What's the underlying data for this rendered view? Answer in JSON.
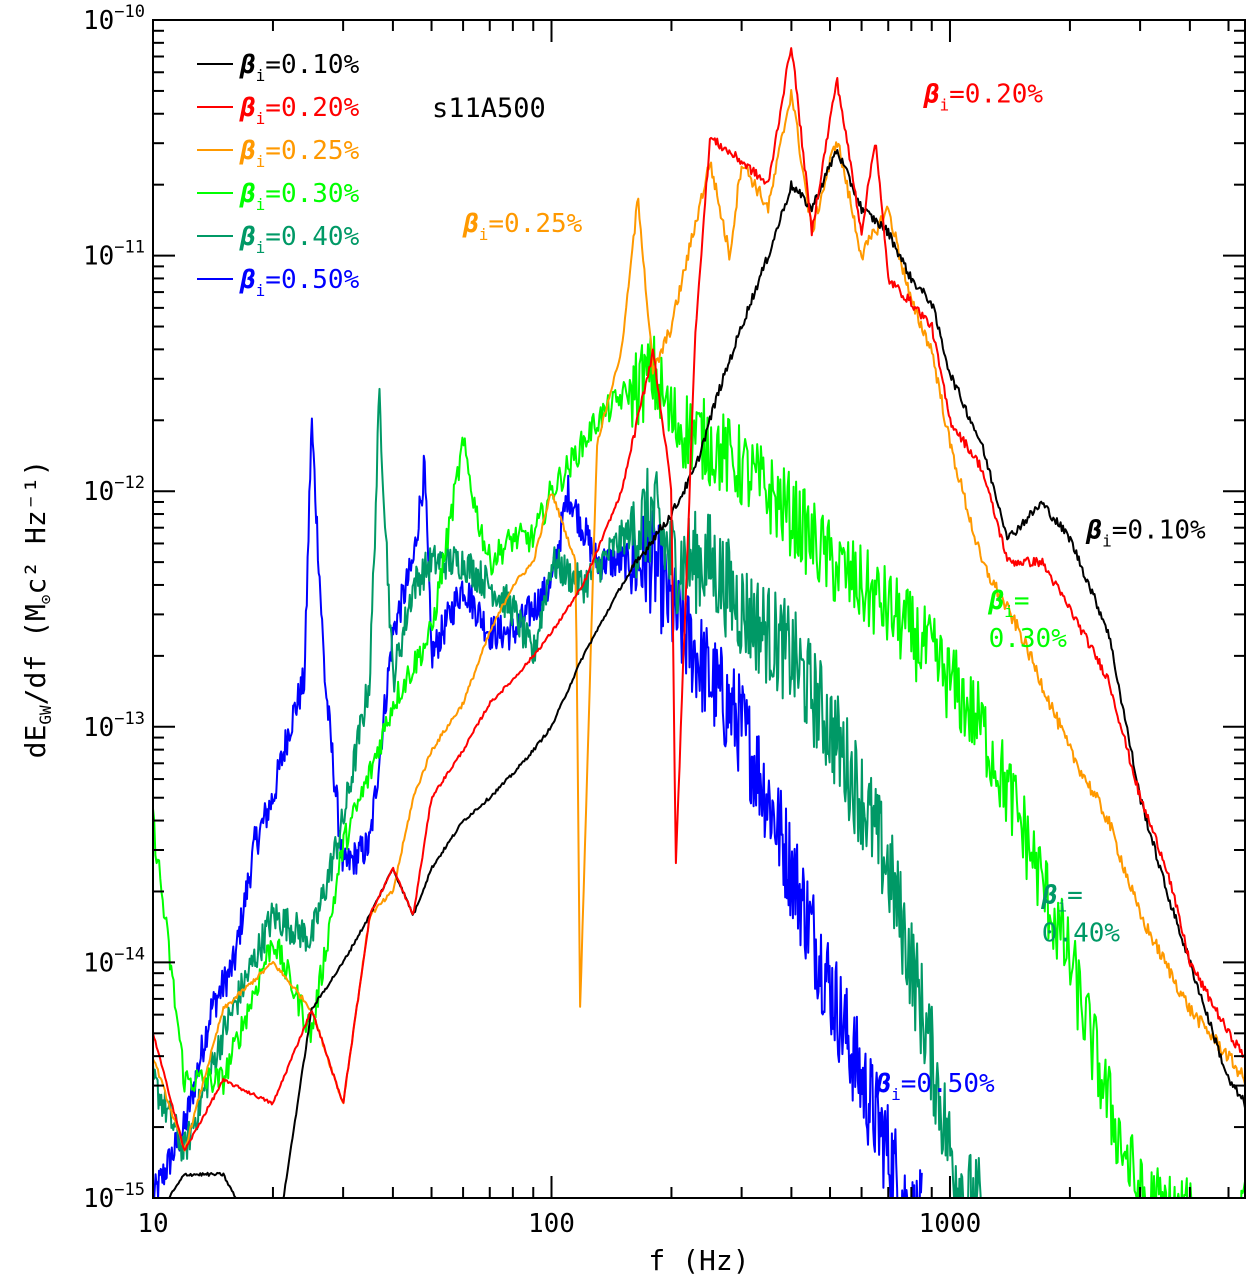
{
  "chart_data": {
    "type": "line",
    "title": "",
    "model_label": "s11A500",
    "xlabel": "f (Hz)",
    "ylabel_main": "dE",
    "ylabel_sub": "GW",
    "ylabel_rest": "/df (M",
    "ylabel_sun": "⊙",
    "ylabel_units": "c² Hz⁻¹)",
    "x_scale": "log",
    "y_scale": "log",
    "xlim": [
      10,
      5500
    ],
    "ylim_exp": [
      -15,
      -10
    ],
    "x_ticks": [
      {
        "value": 10,
        "label": "10"
      },
      {
        "value": 100,
        "label": "100"
      },
      {
        "value": 1000,
        "label": "1000"
      }
    ],
    "y_ticks": [
      {
        "exp": -10,
        "base": "10",
        "sup": "−10"
      },
      {
        "exp": -11,
        "base": "10",
        "sup": "−11"
      },
      {
        "exp": -12,
        "base": "10",
        "sup": "−12"
      },
      {
        "exp": -13,
        "base": "10",
        "sup": "−13"
      },
      {
        "exp": -14,
        "base": "10",
        "sup": "−14"
      },
      {
        "exp": -15,
        "base": "10",
        "sup": "−15"
      }
    ],
    "legend_position": "top-left",
    "series": [
      {
        "name": "0.10%",
        "color": "#000000",
        "noise": 0.02,
        "points": [
          [
            10,
            -15.1
          ],
          [
            12,
            -14.9
          ],
          [
            15,
            -14.9
          ],
          [
            20,
            -15.3
          ],
          [
            25,
            -14.2
          ],
          [
            30,
            -14.0
          ],
          [
            35,
            -13.8
          ],
          [
            40,
            -13.6
          ],
          [
            45,
            -13.8
          ],
          [
            50,
            -13.6
          ],
          [
            60,
            -13.4
          ],
          [
            70,
            -13.3
          ],
          [
            80,
            -13.2
          ],
          [
            90,
            -13.1
          ],
          [
            100,
            -13.0
          ],
          [
            120,
            -12.7
          ],
          [
            150,
            -12.4
          ],
          [
            180,
            -12.2
          ],
          [
            200,
            -12.1
          ],
          [
            230,
            -11.9
          ],
          [
            260,
            -11.6
          ],
          [
            300,
            -11.3
          ],
          [
            350,
            -11.0
          ],
          [
            400,
            -10.7
          ],
          [
            450,
            -10.8
          ],
          [
            520,
            -10.55
          ],
          [
            600,
            -10.8
          ],
          [
            700,
            -10.9
          ],
          [
            800,
            -11.1
          ],
          [
            900,
            -11.2
          ],
          [
            1000,
            -11.5
          ],
          [
            1200,
            -11.8
          ],
          [
            1400,
            -12.2
          ],
          [
            1700,
            -12.05
          ],
          [
            2000,
            -12.2
          ],
          [
            2500,
            -12.6
          ],
          [
            3000,
            -13.3
          ],
          [
            3500,
            -13.7
          ],
          [
            4000,
            -14.0
          ],
          [
            5000,
            -14.5
          ],
          [
            5500,
            -14.6
          ]
        ]
      },
      {
        "name": "0.20%",
        "color": "#ff0000",
        "noise": 0.02,
        "points": [
          [
            10,
            -14.3
          ],
          [
            12,
            -14.8
          ],
          [
            15,
            -14.5
          ],
          [
            20,
            -14.6
          ],
          [
            25,
            -14.2
          ],
          [
            30,
            -14.6
          ],
          [
            35,
            -13.8
          ],
          [
            40,
            -13.6
          ],
          [
            45,
            -13.8
          ],
          [
            50,
            -13.3
          ],
          [
            60,
            -13.1
          ],
          [
            70,
            -12.9
          ],
          [
            80,
            -12.8
          ],
          [
            90,
            -12.7
          ],
          [
            100,
            -12.6
          ],
          [
            120,
            -12.4
          ],
          [
            150,
            -12.0
          ],
          [
            180,
            -11.4
          ],
          [
            200,
            -12.0
          ],
          [
            205,
            -13.6
          ],
          [
            230,
            -11.3
          ],
          [
            250,
            -10.5
          ],
          [
            300,
            -10.6
          ],
          [
            350,
            -10.7
          ],
          [
            400,
            -10.1
          ],
          [
            450,
            -10.9
          ],
          [
            520,
            -10.25
          ],
          [
            600,
            -10.9
          ],
          [
            650,
            -10.5
          ],
          [
            700,
            -11.1
          ],
          [
            800,
            -11.2
          ],
          [
            900,
            -11.3
          ],
          [
            1000,
            -11.7
          ],
          [
            1200,
            -11.9
          ],
          [
            1400,
            -12.3
          ],
          [
            1700,
            -12.3
          ],
          [
            2000,
            -12.5
          ],
          [
            2500,
            -12.8
          ],
          [
            3000,
            -13.3
          ],
          [
            3500,
            -13.6
          ],
          [
            4000,
            -14.0
          ],
          [
            5000,
            -14.3
          ],
          [
            5500,
            -14.4
          ]
        ]
      },
      {
        "name": "0.25%",
        "color": "#ff9900",
        "noise": 0.03,
        "points": [
          [
            10,
            -14.4
          ],
          [
            12,
            -14.8
          ],
          [
            15,
            -14.2
          ],
          [
            20,
            -14.0
          ],
          [
            25,
            -14.2
          ],
          [
            30,
            -14.6
          ],
          [
            35,
            -13.8
          ],
          [
            40,
            -13.7
          ],
          [
            45,
            -13.3
          ],
          [
            50,
            -13.1
          ],
          [
            60,
            -12.9
          ],
          [
            70,
            -12.6
          ],
          [
            80,
            -12.4
          ],
          [
            90,
            -12.3
          ],
          [
            100,
            -12.0
          ],
          [
            115,
            -12.3
          ],
          [
            118,
            -14.2
          ],
          [
            130,
            -11.8
          ],
          [
            150,
            -11.4
          ],
          [
            165,
            -10.75
          ],
          [
            180,
            -11.5
          ],
          [
            200,
            -11.3
          ],
          [
            220,
            -11.0
          ],
          [
            250,
            -10.6
          ],
          [
            280,
            -11.0
          ],
          [
            300,
            -10.6
          ],
          [
            350,
            -10.8
          ],
          [
            400,
            -10.3
          ],
          [
            450,
            -10.9
          ],
          [
            520,
            -10.5
          ],
          [
            600,
            -11.0
          ],
          [
            700,
            -10.8
          ],
          [
            800,
            -11.2
          ],
          [
            900,
            -11.4
          ],
          [
            1000,
            -11.8
          ],
          [
            1200,
            -12.3
          ],
          [
            1500,
            -12.6
          ],
          [
            2000,
            -13.1
          ],
          [
            2500,
            -13.4
          ],
          [
            3000,
            -13.8
          ],
          [
            4000,
            -14.2
          ],
          [
            5000,
            -14.4
          ],
          [
            5500,
            -14.5
          ]
        ]
      },
      {
        "name": "0.30%",
        "color": "#00ff00",
        "noise": 0.18,
        "points": [
          [
            10,
            -13.4
          ],
          [
            12,
            -14.5
          ],
          [
            15,
            -14.5
          ],
          [
            20,
            -13.9
          ],
          [
            25,
            -14.3
          ],
          [
            30,
            -13.5
          ],
          [
            35,
            -13.2
          ],
          [
            40,
            -12.9
          ],
          [
            50,
            -12.6
          ],
          [
            60,
            -11.8
          ],
          [
            65,
            -12.1
          ],
          [
            70,
            -12.3
          ],
          [
            80,
            -12.2
          ],
          [
            90,
            -12.2
          ],
          [
            100,
            -12.0
          ],
          [
            110,
            -11.9
          ],
          [
            130,
            -11.7
          ],
          [
            150,
            -11.6
          ],
          [
            180,
            -11.5
          ],
          [
            200,
            -11.7
          ],
          [
            250,
            -11.8
          ],
          [
            300,
            -11.9
          ],
          [
            400,
            -12.1
          ],
          [
            500,
            -12.3
          ],
          [
            700,
            -12.5
          ],
          [
            900,
            -12.7
          ],
          [
            1200,
            -13.0
          ],
          [
            1500,
            -13.4
          ],
          [
            2000,
            -14.0
          ],
          [
            2500,
            -14.6
          ],
          [
            3000,
            -15.0
          ],
          [
            4000,
            -15.1
          ],
          [
            5000,
            -15.2
          ],
          [
            5500,
            -15.1
          ]
        ]
      },
      {
        "name": "0.40%",
        "color": "#009966",
        "noise": 0.22,
        "points": [
          [
            10,
            -14.5
          ],
          [
            12,
            -14.8
          ],
          [
            15,
            -14.3
          ],
          [
            20,
            -13.8
          ],
          [
            25,
            -13.9
          ],
          [
            30,
            -13.4
          ],
          [
            35,
            -12.8
          ],
          [
            37,
            -11.6
          ],
          [
            40,
            -12.8
          ],
          [
            45,
            -12.4
          ],
          [
            50,
            -12.3
          ],
          [
            60,
            -12.3
          ],
          [
            70,
            -12.4
          ],
          [
            80,
            -12.5
          ],
          [
            90,
            -12.7
          ],
          [
            100,
            -12.3
          ],
          [
            120,
            -12.4
          ],
          [
            150,
            -12.2
          ],
          [
            180,
            -12.1
          ],
          [
            200,
            -12.3
          ],
          [
            250,
            -12.3
          ],
          [
            300,
            -12.5
          ],
          [
            400,
            -12.7
          ],
          [
            500,
            -13.0
          ],
          [
            600,
            -13.3
          ],
          [
            700,
            -13.6
          ],
          [
            800,
            -14.0
          ],
          [
            900,
            -14.4
          ],
          [
            1000,
            -14.8
          ],
          [
            1100,
            -15.0
          ],
          [
            1200,
            -15.05
          ]
        ]
      },
      {
        "name": "0.50%",
        "color": "#0000ff",
        "noise": 0.22,
        "points": [
          [
            10,
            -15.0
          ],
          [
            12,
            -14.7
          ],
          [
            14,
            -14.2
          ],
          [
            16,
            -14.0
          ],
          [
            18,
            -13.5
          ],
          [
            20,
            -13.3
          ],
          [
            22,
            -13.0
          ],
          [
            24,
            -12.8
          ],
          [
            25,
            -11.7
          ],
          [
            27,
            -12.8
          ],
          [
            30,
            -13.6
          ],
          [
            35,
            -13.5
          ],
          [
            40,
            -12.6
          ],
          [
            45,
            -12.3
          ],
          [
            48,
            -11.9
          ],
          [
            50,
            -12.7
          ],
          [
            60,
            -12.4
          ],
          [
            70,
            -12.6
          ],
          [
            80,
            -12.6
          ],
          [
            100,
            -12.4
          ],
          [
            110,
            -12.0
          ],
          [
            130,
            -12.3
          ],
          [
            150,
            -12.3
          ],
          [
            180,
            -12.3
          ],
          [
            200,
            -12.5
          ],
          [
            250,
            -12.8
          ],
          [
            300,
            -13.0
          ],
          [
            350,
            -13.3
          ],
          [
            400,
            -13.6
          ],
          [
            500,
            -14.1
          ],
          [
            600,
            -14.5
          ],
          [
            700,
            -14.8
          ],
          [
            800,
            -15.1
          ],
          [
            850,
            -15.1
          ]
        ]
      }
    ],
    "legend": [
      {
        "prefix": "β",
        "sub": "i",
        "text": "=0.10%",
        "color": "#000000"
      },
      {
        "prefix": "β",
        "sub": "i",
        "text": "=0.20%",
        "color": "#ff0000"
      },
      {
        "prefix": "β",
        "sub": "i",
        "text": "=0.25%",
        "color": "#ff9900"
      },
      {
        "prefix": "β",
        "sub": "i",
        "text": "=0.30%",
        "color": "#00ff00"
      },
      {
        "prefix": "β",
        "sub": "i",
        "text": "=0.40%",
        "color": "#009966"
      },
      {
        "prefix": "β",
        "sub": "i",
        "text": "=0.50%",
        "color": "#0000ff"
      }
    ],
    "annotations": [
      {
        "name": "annotation-beta-020",
        "prefix": "β",
        "sub": "i",
        "text": "=0.20%",
        "color": "#ff0000",
        "f": 860,
        "e": -10.35
      },
      {
        "name": "annotation-beta-025",
        "prefix": "β",
        "sub": "i",
        "text": "=0.25%",
        "color": "#ff9900",
        "f": 60,
        "e": -10.9
      },
      {
        "name": "annotation-beta-010",
        "prefix": "β",
        "sub": "i",
        "text": "=0.10%",
        "color": "#000000",
        "f": 2200,
        "e": -12.2
      },
      {
        "name": "annotation-beta-030",
        "prefix": "β",
        "sub": "i",
        "text": "=",
        "line2": "0.30%",
        "color": "#00ff00",
        "f": 1250,
        "e": -12.5
      },
      {
        "name": "annotation-beta-040",
        "prefix": "β",
        "sub": "i",
        "text": "=",
        "line2": "0.40%",
        "color": "#009966",
        "f": 1700,
        "e": -13.75
      },
      {
        "name": "annotation-beta-050",
        "prefix": "β",
        "sub": "i",
        "text": "=0.50%",
        "color": "#0000ff",
        "f": 650,
        "e": -14.55
      }
    ]
  }
}
